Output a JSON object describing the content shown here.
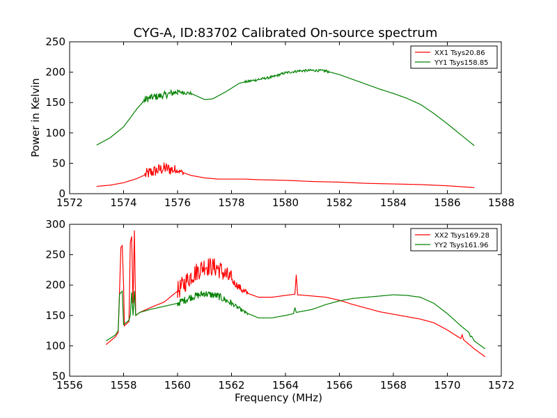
{
  "title": "CYG-A, ID:83702 Calibrated On-source spectrum",
  "chart_data": [
    {
      "type": "line",
      "xlabel": "",
      "ylabel": "Power in Kelvin",
      "xlim": [
        1572,
        1588
      ],
      "ylim": [
        0,
        250
      ],
      "xticks": [
        1572,
        1574,
        1576,
        1578,
        1580,
        1582,
        1584,
        1586,
        1588
      ],
      "yticks": [
        0,
        50,
        100,
        150,
        200,
        250
      ],
      "legend_position": "top-right",
      "grid": false,
      "series": [
        {
          "name": "XX1 Tsys20.86",
          "color": "#ff0000",
          "noise": [
            [
              1574.8,
              1575.9,
              10
            ],
            [
              1575.9,
              1576.2,
              4
            ]
          ],
          "points": [
            [
              1573.0,
              12
            ],
            [
              1573.5,
              14
            ],
            [
              1574.0,
              18
            ],
            [
              1574.5,
              25
            ],
            [
              1575.0,
              35
            ],
            [
              1575.5,
              42
            ],
            [
              1576.0,
              38
            ],
            [
              1576.5,
              30
            ],
            [
              1577.0,
              26
            ],
            [
              1577.5,
              24
            ],
            [
              1578.0,
              24
            ],
            [
              1578.5,
              24
            ],
            [
              1579.0,
              23
            ],
            [
              1580.0,
              22
            ],
            [
              1581.0,
              20
            ],
            [
              1582.0,
              19
            ],
            [
              1583.0,
              17
            ],
            [
              1584.0,
              16
            ],
            [
              1585.0,
              15
            ],
            [
              1586.0,
              13
            ],
            [
              1587.0,
              10
            ]
          ]
        },
        {
          "name": "YY1 Tsys158.85",
          "color": "#008000",
          "noise": [
            [
              1574.7,
              1576.0,
              6
            ],
            [
              1576.0,
              1576.5,
              3
            ],
            [
              1578.5,
              1580.0,
              2
            ],
            [
              1580.0,
              1581.6,
              2
            ]
          ],
          "points": [
            [
              1573.0,
              80
            ],
            [
              1573.5,
              92
            ],
            [
              1574.0,
              110
            ],
            [
              1574.5,
              140
            ],
            [
              1574.8,
              155
            ],
            [
              1575.0,
              158
            ],
            [
              1575.5,
              162
            ],
            [
              1576.0,
              168
            ],
            [
              1576.5,
              165
            ],
            [
              1577.0,
              155
            ],
            [
              1577.3,
              156
            ],
            [
              1577.8,
              168
            ],
            [
              1578.3,
              182
            ],
            [
              1579.0,
              188
            ],
            [
              1579.5,
              192
            ],
            [
              1580.0,
              199
            ],
            [
              1580.5,
              202
            ],
            [
              1581.0,
              203
            ],
            [
              1581.5,
              202
            ],
            [
              1582.0,
              196
            ],
            [
              1582.5,
              188
            ],
            [
              1583.0,
              180
            ],
            [
              1583.5,
              172
            ],
            [
              1584.0,
              165
            ],
            [
              1584.5,
              157
            ],
            [
              1585.0,
              147
            ],
            [
              1585.5,
              132
            ],
            [
              1586.0,
              115
            ],
            [
              1586.5,
              97
            ],
            [
              1587.0,
              79
            ]
          ]
        }
      ]
    },
    {
      "type": "line",
      "xlabel": "Frequency (MHz)",
      "ylabel": "",
      "xlim": [
        1556,
        1572
      ],
      "ylim": [
        50,
        300
      ],
      "xticks": [
        1556,
        1558,
        1560,
        1562,
        1564,
        1566,
        1568,
        1570,
        1572
      ],
      "yticks": [
        50,
        100,
        150,
        200,
        250,
        300
      ],
      "legend_position": "top-right",
      "grid": false,
      "series": [
        {
          "name": "XX2 Tsys169.28",
          "color": "#ff0000",
          "noise": [
            [
              1560.0,
              1562.0,
              16
            ],
            [
              1562.0,
              1562.6,
              6
            ]
          ],
          "points": [
            [
              1557.35,
              102
            ],
            [
              1557.7,
              115
            ],
            [
              1557.8,
              122
            ],
            [
              1557.85,
              190
            ],
            [
              1557.9,
              262
            ],
            [
              1557.95,
              265
            ],
            [
              1558.0,
              200
            ],
            [
              1558.03,
              133
            ],
            [
              1558.2,
              140
            ],
            [
              1558.25,
              270
            ],
            [
              1558.3,
              280
            ],
            [
              1558.35,
              170
            ],
            [
              1558.4,
              290
            ],
            [
              1558.45,
              150
            ],
            [
              1558.6,
              155
            ],
            [
              1559.0,
              163
            ],
            [
              1559.5,
              172
            ],
            [
              1560.0,
              190
            ],
            [
              1560.5,
              215
            ],
            [
              1561.0,
              232
            ],
            [
              1561.5,
              228
            ],
            [
              1562.0,
              208
            ],
            [
              1562.5,
              188
            ],
            [
              1563.0,
              180
            ],
            [
              1563.5,
              180
            ],
            [
              1564.0,
              183
            ],
            [
              1564.35,
              185
            ],
            [
              1564.4,
              217
            ],
            [
              1564.45,
              184
            ],
            [
              1565.0,
              182
            ],
            [
              1565.5,
              180
            ],
            [
              1566.0,
              175
            ],
            [
              1566.5,
              168
            ],
            [
              1567.0,
              162
            ],
            [
              1567.5,
              156
            ],
            [
              1568.0,
              152
            ],
            [
              1568.5,
              148
            ],
            [
              1569.0,
              144
            ],
            [
              1569.5,
              138
            ],
            [
              1570.0,
              126
            ],
            [
              1570.5,
              112
            ],
            [
              1570.55,
              118
            ],
            [
              1570.6,
              110
            ],
            [
              1571.0,
              95
            ],
            [
              1571.4,
              82
            ]
          ]
        },
        {
          "name": "YY2 Tsys161.96",
          "color": "#008000",
          "noise": [
            [
              1560.0,
              1562.0,
              6
            ],
            [
              1562.0,
              1562.6,
              3
            ]
          ],
          "points": [
            [
              1557.35,
              108
            ],
            [
              1557.7,
              118
            ],
            [
              1557.8,
              125
            ],
            [
              1557.85,
              185
            ],
            [
              1557.95,
              190
            ],
            [
              1558.0,
              135
            ],
            [
              1558.2,
              142
            ],
            [
              1558.25,
              150
            ],
            [
              1558.3,
              188
            ],
            [
              1558.35,
              150
            ],
            [
              1558.4,
              190
            ],
            [
              1558.45,
              150
            ],
            [
              1558.6,
              155
            ],
            [
              1559.0,
              160
            ],
            [
              1559.5,
              165
            ],
            [
              1560.0,
              170
            ],
            [
              1560.5,
              180
            ],
            [
              1561.0,
              186
            ],
            [
              1561.5,
              182
            ],
            [
              1562.0,
              170
            ],
            [
              1562.5,
              155
            ],
            [
              1563.0,
              146
            ],
            [
              1563.5,
              146
            ],
            [
              1564.0,
              150
            ],
            [
              1564.3,
              153
            ],
            [
              1564.35,
              163
            ],
            [
              1564.4,
              155
            ],
            [
              1565.0,
              160
            ],
            [
              1565.5,
              168
            ],
            [
              1566.0,
              174
            ],
            [
              1566.5,
              178
            ],
            [
              1567.0,
              180
            ],
            [
              1567.5,
              182
            ],
            [
              1568.0,
              184
            ],
            [
              1568.5,
              183
            ],
            [
              1569.0,
              180
            ],
            [
              1569.5,
              170
            ],
            [
              1570.0,
              153
            ],
            [
              1570.5,
              133
            ],
            [
              1570.8,
              122
            ],
            [
              1570.85,
              115
            ],
            [
              1570.9,
              116
            ],
            [
              1571.0,
              108
            ],
            [
              1571.4,
              95
            ]
          ]
        }
      ]
    }
  ]
}
